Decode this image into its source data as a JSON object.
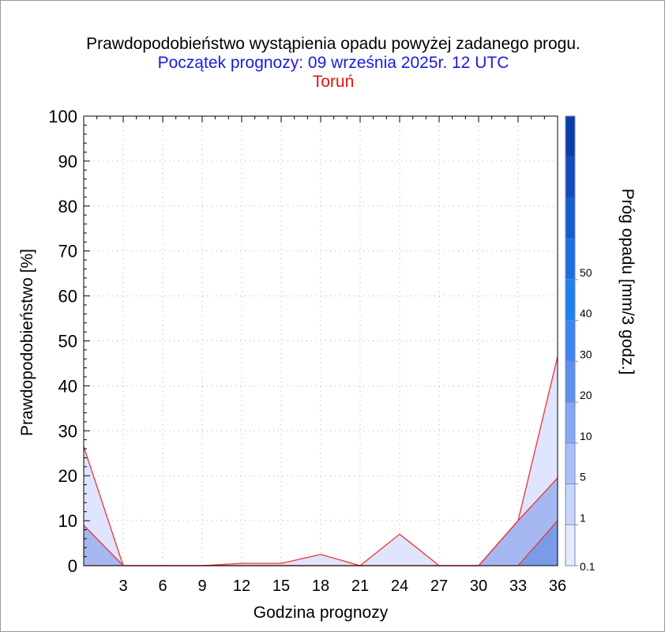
{
  "chart_data": {
    "type": "area",
    "title": "Prawdopodobieństwo wystąpienia opadu powyżej zadanego progu.",
    "subtitle": "Początek prognozy: 09 września 2025r. 12 UTC",
    "location": "Toruń",
    "xlabel": "Godzina prognozy",
    "ylabel": "Prawdopodobieństwo [%]",
    "colorbar_label": "Próg opadu [mm/3 godz.]",
    "xlim": [
      0,
      36
    ],
    "ylim": [
      0,
      100
    ],
    "xticks": [
      "3",
      "6",
      "9",
      "12",
      "15",
      "18",
      "21",
      "24",
      "27",
      "30",
      "33",
      "36"
    ],
    "yticks": [
      "0",
      "10",
      "20",
      "30",
      "40",
      "50",
      "60",
      "70",
      "80",
      "90",
      "100"
    ],
    "grid": true,
    "x": [
      0,
      3,
      6,
      9,
      12,
      15,
      18,
      21,
      24,
      27,
      30,
      33,
      36
    ],
    "series": [
      {
        "name": "0.1",
        "color": "#dfe5ff",
        "values": [
          26.5,
          0,
          0,
          0,
          0.5,
          0.5,
          2.5,
          0,
          7,
          0,
          0,
          10,
          46.5
        ]
      },
      {
        "name": "1",
        "color": "#a6b8f2",
        "values": [
          9,
          0,
          0,
          0,
          0,
          0,
          0,
          0,
          0,
          0,
          0,
          10,
          19.5
        ]
      },
      {
        "name": "5",
        "color": "#7a9ce6",
        "values": [
          0,
          0,
          0,
          0,
          0,
          0,
          0,
          0,
          0,
          0,
          0,
          0,
          10
        ]
      }
    ],
    "colorbar": {
      "tick_labels": [
        "0.1",
        "1",
        "5",
        "10",
        "20",
        "30",
        "40",
        "50"
      ],
      "colors": [
        "#e6ebff",
        "#c9d6fb",
        "#a8c0f6",
        "#86a8f1",
        "#5e91ee",
        "#3b86f2",
        "#1e7fef",
        "#1a6fe0",
        "#155ed0",
        "#104cbc",
        "#0b3da6"
      ]
    }
  },
  "colors": {
    "title": "#000000",
    "subtitle": "#1a1ae6",
    "location": "#ee1111",
    "series_line": "#ee3333"
  }
}
